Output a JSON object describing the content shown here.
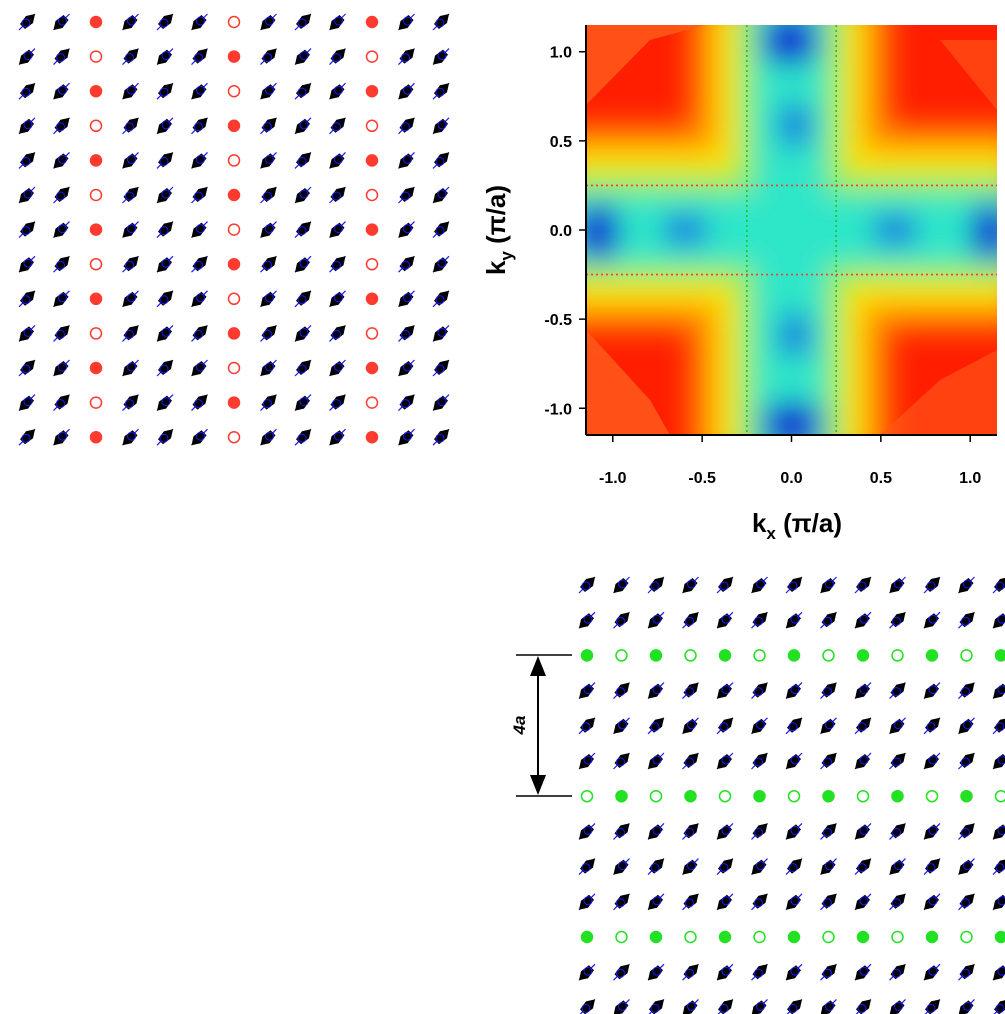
{
  "colors": {
    "hole_vertical": "#ff3b30",
    "hole_horizontal": "#22e022",
    "spin": "#000000",
    "spin_outline": "#1a1aff",
    "map_red": "#ff1e00",
    "map_cyan": "#2ee6c8",
    "map_blue": "#1428d2",
    "dotted_red": "#ff3b30",
    "dotted_green": "#22c422"
  },
  "stripe_vertical": {
    "rows": 13,
    "cols": 13,
    "hole_columns": [
      2,
      6,
      10
    ]
  },
  "stripe_horizontal": {
    "rows": 13,
    "cols": 13,
    "hole_rows": [
      2,
      6,
      10
    ],
    "period_label": "4a"
  },
  "chart_data": {
    "type": "heatmap",
    "title": "",
    "x_axis": {
      "label_main": "k",
      "label_sub": "x",
      "label_unit": " (π/a)",
      "range": [
        -1.15,
        1.15
      ],
      "ticks": [
        "-1.0",
        "-0.5",
        "0.0",
        "0.5",
        "1.0"
      ]
    },
    "y_axis": {
      "label_main": "k",
      "label_sub": "y",
      "label_unit": " (π/a)",
      "range": [
        -1.15,
        1.15
      ],
      "ticks": [
        "1.0",
        "0.5",
        "0.0",
        "-0.5",
        "-1.0"
      ]
    },
    "vertical_dotted_lines_kx": [
      -0.25,
      0.25
    ],
    "horizontal_dotted_lines_ky": [
      -0.25,
      0.25
    ],
    "color_scale": [
      "blue (low)",
      "cyan",
      "green",
      "yellow",
      "red (high)"
    ]
  }
}
